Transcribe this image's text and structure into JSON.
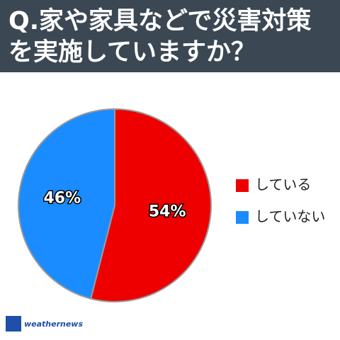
{
  "chart_data": {
    "type": "pie",
    "title": "Q.家や家具などで災害対策を実施していますか？",
    "categories": [
      "している",
      "していない"
    ],
    "values": [
      54,
      46
    ],
    "value_labels": [
      "54%",
      "46%"
    ],
    "colors": [
      "#ee0000",
      "#1a8cff"
    ],
    "source": "weathernews"
  }
}
